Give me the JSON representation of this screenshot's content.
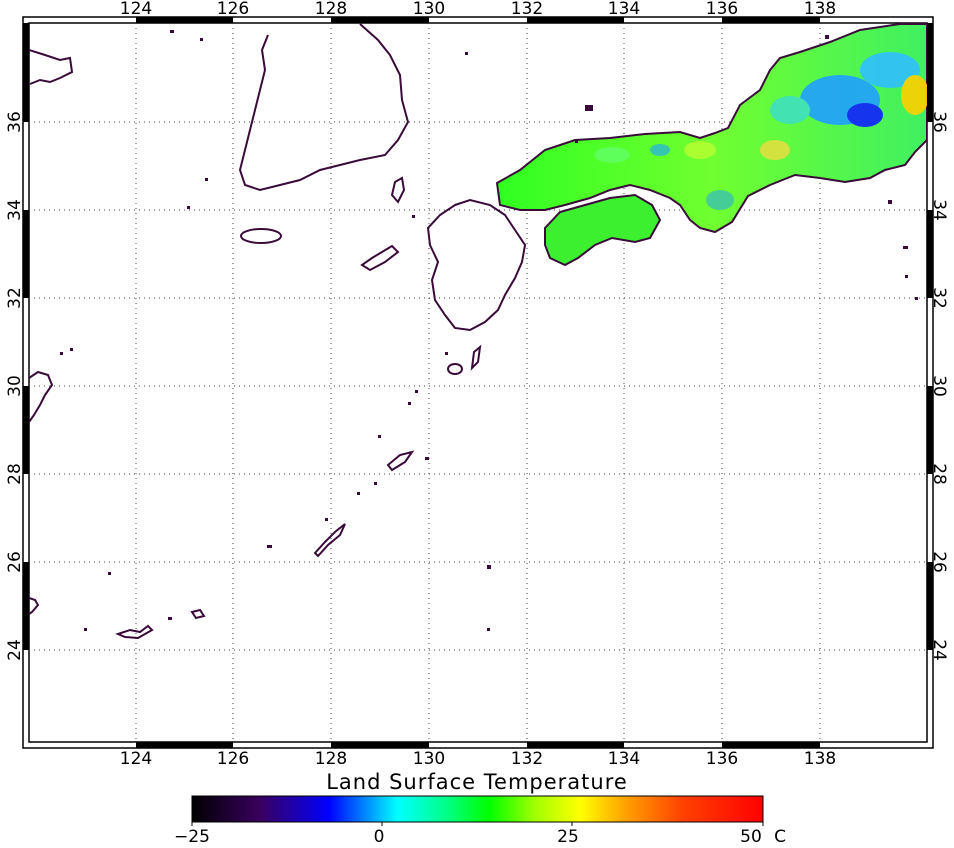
{
  "map": {
    "type": "geographic-raster",
    "region": "Southern Japan / East China Sea",
    "lon_range": [
      122,
      140
    ],
    "lat_range": [
      22,
      38
    ],
    "lon_ticks": [
      124,
      126,
      128,
      130,
      132,
      134,
      136,
      138
    ],
    "lat_ticks": [
      24,
      26,
      28,
      30,
      32,
      34,
      36
    ],
    "lon_tick_labels": [
      "124",
      "126",
      "128",
      "130",
      "132",
      "134",
      "136",
      "138"
    ],
    "lat_tick_labels": [
      "24",
      "26",
      "28",
      "30",
      "32",
      "34",
      "36"
    ],
    "grid": "dotted",
    "coastline_color": "#3a0a3a"
  },
  "colorbar": {
    "title": "Land Surface Temperature",
    "min": -25,
    "max": 50,
    "unit": "C",
    "tick_values": [
      -25,
      0,
      25,
      50
    ],
    "tick_labels": [
      "−25",
      "0",
      "25",
      "50"
    ],
    "unit_label": "C",
    "colors": [
      "#000000",
      "#3a0060",
      "#0000ff",
      "#00a0ff",
      "#00ffff",
      "#00ff80",
      "#00ff00",
      "#a0ff00",
      "#ffff00",
      "#ffa000",
      "#ff4000",
      "#ff0000"
    ]
  }
}
